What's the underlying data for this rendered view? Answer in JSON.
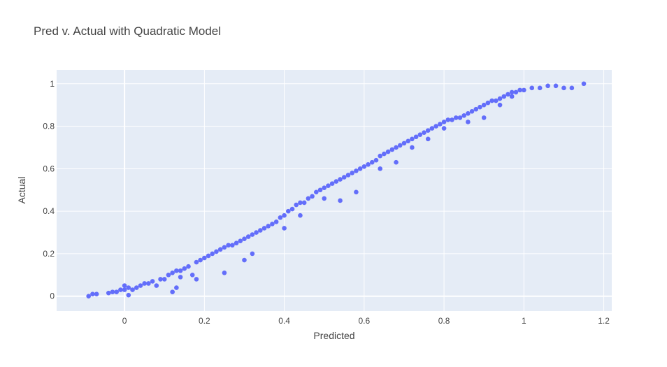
{
  "chart_data": {
    "type": "scatter",
    "title": "Pred v. Actual with Quadratic Model",
    "xlabel": "Predicted",
    "ylabel": "Actual",
    "xlim": [
      -0.17,
      1.22
    ],
    "ylim": [
      -0.07,
      1.065
    ],
    "x_ticks": [
      0,
      0.2,
      0.4,
      0.6,
      0.8,
      1,
      1.2
    ],
    "y_ticks": [
      0,
      0.2,
      0.4,
      0.6,
      0.8,
      1
    ],
    "x_tick_labels": [
      "0",
      "0.2",
      "0.4",
      "0.6",
      "0.8",
      "1",
      "1.2"
    ],
    "y_tick_labels": [
      "0",
      "0.2",
      "0.4",
      "0.6",
      "0.8",
      "1"
    ],
    "grid": true,
    "colors": {
      "plot_background": "#e5ecf6",
      "gridline": "#ffffff",
      "marker": "#636efa",
      "text": "#444444"
    },
    "series": [
      {
        "points": [
          [
            -0.09,
            0.0
          ],
          [
            -0.08,
            0.01
          ],
          [
            -0.07,
            0.01
          ],
          [
            -0.04,
            0.015
          ],
          [
            -0.03,
            0.02
          ],
          [
            -0.02,
            0.02
          ],
          [
            -0.01,
            0.03
          ],
          [
            0.0,
            0.03
          ],
          [
            0.01,
            0.04
          ],
          [
            0.02,
            0.03
          ],
          [
            0.0,
            0.05
          ],
          [
            0.01,
            0.005
          ],
          [
            0.03,
            0.04
          ],
          [
            0.04,
            0.05
          ],
          [
            0.05,
            0.06
          ],
          [
            0.06,
            0.06
          ],
          [
            0.07,
            0.07
          ],
          [
            0.08,
            0.05
          ],
          [
            0.09,
            0.08
          ],
          [
            0.1,
            0.08
          ],
          [
            0.11,
            0.1
          ],
          [
            0.12,
            0.11
          ],
          [
            0.13,
            0.12
          ],
          [
            0.14,
            0.12
          ],
          [
            0.15,
            0.13
          ],
          [
            0.16,
            0.14
          ],
          [
            0.12,
            0.02
          ],
          [
            0.13,
            0.04
          ],
          [
            0.14,
            0.09
          ],
          [
            0.17,
            0.1
          ],
          [
            0.18,
            0.08
          ],
          [
            0.18,
            0.16
          ],
          [
            0.19,
            0.17
          ],
          [
            0.2,
            0.18
          ],
          [
            0.21,
            0.19
          ],
          [
            0.22,
            0.2
          ],
          [
            0.23,
            0.21
          ],
          [
            0.24,
            0.22
          ],
          [
            0.25,
            0.23
          ],
          [
            0.26,
            0.24
          ],
          [
            0.27,
            0.24
          ],
          [
            0.25,
            0.11
          ],
          [
            0.28,
            0.25
          ],
          [
            0.29,
            0.26
          ],
          [
            0.3,
            0.27
          ],
          [
            0.31,
            0.28
          ],
          [
            0.32,
            0.29
          ],
          [
            0.33,
            0.3
          ],
          [
            0.3,
            0.17
          ],
          [
            0.32,
            0.2
          ],
          [
            0.34,
            0.31
          ],
          [
            0.35,
            0.32
          ],
          [
            0.36,
            0.33
          ],
          [
            0.37,
            0.34
          ],
          [
            0.38,
            0.35
          ],
          [
            0.39,
            0.37
          ],
          [
            0.4,
            0.38
          ],
          [
            0.41,
            0.4
          ],
          [
            0.42,
            0.41
          ],
          [
            0.43,
            0.43
          ],
          [
            0.44,
            0.44
          ],
          [
            0.45,
            0.44
          ],
          [
            0.46,
            0.46
          ],
          [
            0.47,
            0.47
          ],
          [
            0.48,
            0.49
          ],
          [
            0.49,
            0.5
          ],
          [
            0.5,
            0.51
          ],
          [
            0.51,
            0.52
          ],
          [
            0.52,
            0.53
          ],
          [
            0.53,
            0.54
          ],
          [
            0.54,
            0.55
          ],
          [
            0.55,
            0.56
          ],
          [
            0.56,
            0.57
          ],
          [
            0.57,
            0.58
          ],
          [
            0.58,
            0.59
          ],
          [
            0.59,
            0.6
          ],
          [
            0.6,
            0.61
          ],
          [
            0.61,
            0.62
          ],
          [
            0.62,
            0.63
          ],
          [
            0.63,
            0.64
          ],
          [
            0.64,
            0.66
          ],
          [
            0.65,
            0.67
          ],
          [
            0.66,
            0.68
          ],
          [
            0.67,
            0.69
          ],
          [
            0.68,
            0.7
          ],
          [
            0.69,
            0.71
          ],
          [
            0.7,
            0.72
          ],
          [
            0.71,
            0.73
          ],
          [
            0.72,
            0.74
          ],
          [
            0.73,
            0.75
          ],
          [
            0.74,
            0.76
          ],
          [
            0.75,
            0.77
          ],
          [
            0.76,
            0.78
          ],
          [
            0.77,
            0.79
          ],
          [
            0.78,
            0.8
          ],
          [
            0.79,
            0.81
          ],
          [
            0.8,
            0.82
          ],
          [
            0.81,
            0.83
          ],
          [
            0.82,
            0.83
          ],
          [
            0.83,
            0.84
          ],
          [
            0.84,
            0.84
          ],
          [
            0.85,
            0.85
          ],
          [
            0.86,
            0.86
          ],
          [
            0.87,
            0.87
          ],
          [
            0.88,
            0.88
          ],
          [
            0.89,
            0.89
          ],
          [
            0.9,
            0.9
          ],
          [
            0.91,
            0.91
          ],
          [
            0.92,
            0.92
          ],
          [
            0.93,
            0.92
          ],
          [
            0.94,
            0.93
          ],
          [
            0.95,
            0.94
          ],
          [
            0.96,
            0.95
          ],
          [
            0.97,
            0.96
          ],
          [
            0.98,
            0.96
          ],
          [
            0.99,
            0.97
          ],
          [
            1.0,
            0.97
          ],
          [
            1.02,
            0.98
          ],
          [
            1.04,
            0.98
          ],
          [
            1.06,
            0.99
          ],
          [
            1.08,
            0.99
          ],
          [
            1.1,
            0.98
          ],
          [
            1.12,
            0.98
          ],
          [
            1.15,
            1.0
          ],
          [
            0.4,
            0.32
          ],
          [
            0.44,
            0.38
          ],
          [
            0.5,
            0.46
          ],
          [
            0.54,
            0.45
          ],
          [
            0.58,
            0.49
          ],
          [
            0.64,
            0.6
          ],
          [
            0.68,
            0.63
          ],
          [
            0.72,
            0.7
          ],
          [
            0.76,
            0.74
          ],
          [
            0.8,
            0.79
          ],
          [
            0.86,
            0.82
          ],
          [
            0.9,
            0.84
          ],
          [
            0.94,
            0.9
          ],
          [
            0.97,
            0.94
          ]
        ]
      }
    ]
  }
}
